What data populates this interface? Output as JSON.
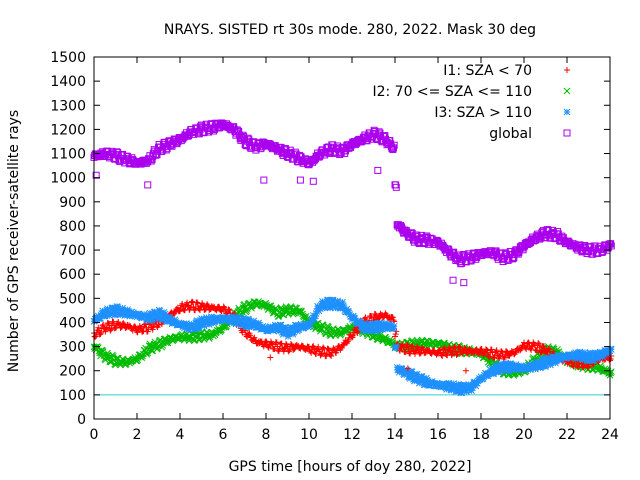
{
  "chart_data": {
    "type": "scatter",
    "title": "NRAYS. SISTED rt 30s mode. 280, 2022. Mask 30 deg",
    "xlabel": "GPS time [hours of doy 280, 2022]",
    "ylabel": "Number of GPS receiver-satellite rays",
    "xlim": [
      0,
      24
    ],
    "ylim": [
      0,
      1500
    ],
    "xticks": [
      0,
      2,
      4,
      6,
      8,
      10,
      12,
      14,
      16,
      18,
      20,
      22,
      24
    ],
    "yticks": [
      0,
      100,
      200,
      300,
      400,
      500,
      600,
      700,
      800,
      900,
      1000,
      1100,
      1200,
      1300,
      1400,
      1500
    ],
    "grid": false,
    "legend_position": "top-right",
    "threshold_line": {
      "y": 100,
      "color": "#33CCCC"
    },
    "series": [
      {
        "name": "I1: SZA < 70",
        "marker": "+",
        "color": "#FF0000",
        "x": [
          0,
          0.5,
          1,
          1.5,
          2,
          2.5,
          3,
          3.5,
          4,
          4.5,
          5,
          5.5,
          6,
          6.5,
          7,
          7.5,
          8,
          8.5,
          9,
          9.5,
          10,
          10.5,
          11,
          11.5,
          12,
          12.5,
          13,
          13.5,
          13.95,
          14.05,
          14.5,
          15,
          15.5,
          16,
          16.5,
          17,
          17.5,
          18,
          18.5,
          19,
          19.5,
          20,
          20.5,
          21,
          21.5,
          22,
          22.5,
          23,
          23.5,
          24
        ],
        "y": [
          350,
          380,
          390,
          385,
          370,
          380,
          400,
          430,
          460,
          470,
          465,
          460,
          455,
          420,
          360,
          320,
          310,
          300,
          295,
          300,
          290,
          280,
          275,
          300,
          350,
          400,
          420,
          430,
          410,
          300,
          290,
          285,
          280,
          275,
          280,
          285,
          280,
          280,
          270,
          265,
          275,
          305,
          300,
          285,
          255,
          240,
          230,
          230,
          250,
          255
        ]
      },
      {
        "name": "I2: 70 <= SZA <= 110",
        "marker": "x",
        "color": "#00BB00",
        "x": [
          0,
          0.5,
          1,
          1.5,
          2,
          2.5,
          3,
          3.5,
          4,
          4.5,
          5,
          5.5,
          6,
          6.5,
          7,
          7.5,
          8,
          8.5,
          9,
          9.5,
          10,
          10.5,
          11,
          11.5,
          12,
          12.5,
          13,
          13.5,
          13.95,
          14.05,
          14.5,
          15,
          15.5,
          16,
          16.5,
          17,
          17.5,
          18,
          18.5,
          19,
          19.5,
          20,
          20.5,
          21,
          21.5,
          22,
          22.5,
          23,
          23.5,
          24
        ],
        "y": [
          300,
          260,
          240,
          235,
          250,
          290,
          310,
          330,
          340,
          340,
          345,
          350,
          380,
          430,
          460,
          480,
          470,
          440,
          450,
          450,
          400,
          380,
          360,
          360,
          380,
          370,
          350,
          330,
          310,
          300,
          305,
          310,
          315,
          310,
          295,
          285,
          280,
          270,
          230,
          200,
          190,
          200,
          250,
          285,
          280,
          240,
          230,
          220,
          210,
          190
        ]
      },
      {
        "name": "I3: SZA > 110",
        "marker": "*",
        "color": "#1E90FF",
        "x": [
          0,
          0.5,
          1,
          1.5,
          2,
          2.5,
          3,
          3.5,
          4,
          4.5,
          5,
          5.5,
          6,
          6.5,
          7,
          7.5,
          8,
          8.5,
          9,
          9.5,
          10,
          10.5,
          11,
          11.5,
          12,
          12.5,
          13,
          13.5,
          13.95,
          14.05,
          14.5,
          15,
          15.5,
          16,
          16.5,
          17,
          17.5,
          18,
          18.5,
          19,
          19.5,
          20,
          20.5,
          21,
          21.5,
          22,
          22.5,
          23,
          23.5,
          24
        ],
        "y": [
          410,
          440,
          450,
          440,
          430,
          420,
          435,
          410,
          390,
          380,
          400,
          410,
          415,
          410,
          400,
          390,
          370,
          380,
          360,
          380,
          390,
          470,
          480,
          470,
          420,
          380,
          380,
          385,
          380,
          210,
          190,
          170,
          150,
          140,
          135,
          125,
          130,
          170,
          200,
          215,
          215,
          210,
          220,
          235,
          250,
          260,
          265,
          255,
          265,
          285
        ]
      },
      {
        "name": "global",
        "marker": "square",
        "color": "#AA00EE",
        "x": [
          0,
          0.5,
          1,
          1.5,
          2,
          2.5,
          3,
          3.5,
          4,
          4.5,
          5,
          5.5,
          6,
          6.5,
          7,
          7.5,
          8,
          8.5,
          9,
          9.5,
          10,
          10.5,
          11,
          11.5,
          12,
          12.5,
          13,
          13.5,
          13.95,
          14.05,
          14.5,
          15,
          15.5,
          16,
          16.5,
          17,
          17.5,
          18,
          18.5,
          19,
          19.5,
          20,
          20.5,
          21,
          21.5,
          22,
          22.5,
          23,
          23.5,
          24
        ],
        "y": [
          1090,
          1100,
          1090,
          1075,
          1060,
          1070,
          1120,
          1140,
          1160,
          1190,
          1200,
          1210,
          1220,
          1200,
          1150,
          1130,
          1140,
          1120,
          1100,
          1080,
          1060,
          1100,
          1120,
          1110,
          1140,
          1160,
          1180,
          1160,
          1120,
          810,
          770,
          745,
          740,
          730,
          690,
          660,
          670,
          685,
          690,
          670,
          680,
          720,
          750,
          770,
          760,
          730,
          710,
          700,
          700,
          720
        ]
      }
    ],
    "outliers": [
      {
        "series": "global",
        "x": [
          0.1,
          2.5,
          7.9,
          9.6,
          10.2,
          13.2,
          16.7,
          17.2
        ],
        "y": [
          1010,
          970,
          990,
          990,
          985,
          1030,
          575,
          565
        ]
      },
      {
        "series": "I1: SZA < 70",
        "x": [
          8.2,
          14.6,
          17.3
        ],
        "y": [
          255,
          210,
          200
        ]
      }
    ]
  }
}
